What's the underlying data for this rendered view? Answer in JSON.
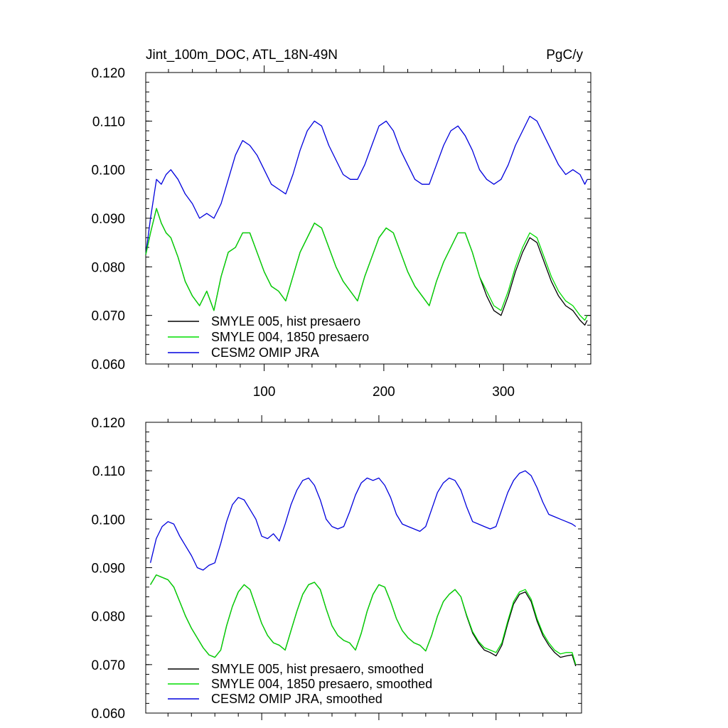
{
  "header": {
    "title": "Jint_100m_DOC, ATL_18N-49N",
    "units": "PgC/y"
  },
  "chart_data": [
    {
      "type": "line",
      "title": "Jint_100m_DOC, ATL_18N-49N",
      "units": "PgC/y",
      "xlim": [
        1,
        373
      ],
      "ylim": [
        0.06,
        0.12
      ],
      "x_ticks": [
        100,
        200,
        300
      ],
      "x_tick_labels": [
        "100",
        "200",
        "300"
      ],
      "y_ticks": [
        0.06,
        0.07,
        0.08,
        0.09,
        0.1,
        0.11,
        0.12
      ],
      "y_tick_labels": [
        "0.060",
        "0.070",
        "0.080",
        "0.090",
        "0.100",
        "0.110",
        "0.120"
      ],
      "legend_position": "bottom-left",
      "grid": false,
      "series": [
        {
          "name": "SMYLE 005, hist presaero",
          "color": "#000000",
          "x": [
            1,
            5,
            10,
            14,
            18,
            22,
            28,
            34,
            40,
            46,
            52,
            58,
            64,
            70,
            76,
            82,
            88,
            94,
            100,
            106,
            112,
            118,
            124,
            130,
            136,
            142,
            148,
            154,
            160,
            166,
            172,
            178,
            184,
            190,
            196,
            202,
            208,
            214,
            220,
            226,
            232,
            238,
            244,
            250,
            256,
            262,
            268,
            274,
            280,
            286,
            292,
            298,
            304,
            310,
            316,
            322,
            328,
            334,
            340,
            346,
            352,
            358,
            364,
            368,
            370
          ],
          "y": [
            0.0825,
            0.087,
            0.092,
            0.089,
            0.087,
            0.086,
            0.082,
            0.077,
            0.074,
            0.072,
            0.075,
            0.071,
            0.078,
            0.083,
            0.084,
            0.087,
            0.087,
            0.083,
            0.079,
            0.076,
            0.075,
            0.073,
            0.078,
            0.083,
            0.086,
            0.089,
            0.088,
            0.084,
            0.08,
            0.077,
            0.075,
            0.073,
            0.078,
            0.082,
            0.086,
            0.088,
            0.087,
            0.083,
            0.079,
            0.076,
            0.074,
            0.072,
            0.077,
            0.081,
            0.084,
            0.087,
            0.087,
            0.083,
            0.078,
            0.074,
            0.071,
            0.07,
            0.074,
            0.079,
            0.083,
            0.086,
            0.085,
            0.081,
            0.077,
            0.074,
            0.072,
            0.071,
            0.069,
            0.068,
            0.069
          ]
        },
        {
          "name": "SMYLE 004, 1850 presaero",
          "color": "#00dd00",
          "x": [
            1,
            5,
            10,
            14,
            18,
            22,
            28,
            34,
            40,
            46,
            52,
            58,
            64,
            70,
            76,
            82,
            88,
            94,
            100,
            106,
            112,
            118,
            124,
            130,
            136,
            142,
            148,
            154,
            160,
            166,
            172,
            178,
            184,
            190,
            196,
            202,
            208,
            214,
            220,
            226,
            232,
            238,
            244,
            250,
            256,
            262,
            268,
            274,
            280,
            286,
            292,
            298,
            304,
            310,
            316,
            322,
            328,
            334,
            340,
            346,
            352,
            358,
            364,
            368,
            370
          ],
          "y": [
            0.0825,
            0.087,
            0.092,
            0.089,
            0.087,
            0.086,
            0.082,
            0.077,
            0.074,
            0.072,
            0.075,
            0.071,
            0.078,
            0.083,
            0.084,
            0.087,
            0.087,
            0.083,
            0.079,
            0.076,
            0.075,
            0.073,
            0.078,
            0.083,
            0.086,
            0.089,
            0.088,
            0.084,
            0.08,
            0.077,
            0.075,
            0.073,
            0.078,
            0.082,
            0.086,
            0.088,
            0.087,
            0.083,
            0.079,
            0.076,
            0.074,
            0.072,
            0.077,
            0.081,
            0.084,
            0.087,
            0.087,
            0.083,
            0.078,
            0.075,
            0.072,
            0.071,
            0.075,
            0.08,
            0.084,
            0.087,
            0.086,
            0.082,
            0.078,
            0.075,
            0.073,
            0.072,
            0.07,
            0.069,
            0.07
          ]
        },
        {
          "name": "CESM2 OMIP JRA",
          "color": "#0000dd",
          "x": [
            1,
            5,
            10,
            14,
            18,
            22,
            28,
            34,
            40,
            46,
            52,
            58,
            64,
            70,
            76,
            82,
            88,
            94,
            100,
            106,
            112,
            118,
            124,
            130,
            136,
            142,
            148,
            154,
            160,
            166,
            172,
            178,
            184,
            190,
            196,
            202,
            208,
            214,
            220,
            226,
            232,
            238,
            244,
            250,
            256,
            262,
            268,
            274,
            280,
            286,
            292,
            298,
            304,
            310,
            316,
            322,
            328,
            334,
            340,
            346,
            352,
            358,
            364,
            368,
            370
          ],
          "y": [
            0.0825,
            0.09,
            0.098,
            0.097,
            0.099,
            0.1,
            0.098,
            0.095,
            0.093,
            0.09,
            0.091,
            0.09,
            0.093,
            0.098,
            0.103,
            0.106,
            0.105,
            0.103,
            0.1,
            0.097,
            0.096,
            0.095,
            0.099,
            0.104,
            0.108,
            0.11,
            0.109,
            0.105,
            0.102,
            0.099,
            0.098,
            0.098,
            0.101,
            0.105,
            0.109,
            0.11,
            0.108,
            0.104,
            0.101,
            0.098,
            0.097,
            0.097,
            0.101,
            0.105,
            0.108,
            0.109,
            0.107,
            0.104,
            0.1,
            0.098,
            0.097,
            0.098,
            0.101,
            0.105,
            0.108,
            0.111,
            0.11,
            0.107,
            0.104,
            0.101,
            0.099,
            0.1,
            0.099,
            0.097,
            0.098
          ]
        }
      ]
    },
    {
      "type": "line",
      "xlim": [
        1,
        373
      ],
      "ylim": [
        0.06,
        0.12
      ],
      "x_ticks": [
        100,
        200,
        300
      ],
      "y_ticks": [
        0.06,
        0.07,
        0.08,
        0.09,
        0.1,
        0.11,
        0.12
      ],
      "y_tick_labels": [
        "0.060",
        "0.070",
        "0.080",
        "0.090",
        "0.100",
        "0.110",
        "0.120"
      ],
      "legend_position": "bottom-left",
      "grid": false,
      "series": [
        {
          "name": "SMYLE 005, hist presaero, smoothed",
          "color": "#000000",
          "x": [
            5,
            10,
            15,
            20,
            25,
            30,
            35,
            40,
            45,
            50,
            55,
            60,
            65,
            70,
            75,
            80,
            85,
            90,
            95,
            100,
            105,
            110,
            115,
            120,
            125,
            130,
            135,
            140,
            145,
            150,
            155,
            160,
            165,
            170,
            175,
            180,
            185,
            190,
            195,
            200,
            205,
            210,
            215,
            220,
            225,
            230,
            235,
            240,
            245,
            250,
            255,
            260,
            265,
            270,
            275,
            280,
            285,
            290,
            295,
            300,
            305,
            310,
            315,
            320,
            325,
            330,
            335,
            340,
            345,
            350,
            355,
            360,
            365,
            368
          ],
          "y": [
            0.0865,
            0.0885,
            0.088,
            0.0875,
            0.086,
            0.083,
            0.08,
            0.0775,
            0.0755,
            0.0735,
            0.072,
            0.0715,
            0.073,
            0.078,
            0.082,
            0.085,
            0.0865,
            0.0855,
            0.082,
            0.0785,
            0.076,
            0.0745,
            0.074,
            0.073,
            0.077,
            0.081,
            0.0845,
            0.0865,
            0.087,
            0.0855,
            0.0815,
            0.078,
            0.076,
            0.075,
            0.0745,
            0.073,
            0.0765,
            0.081,
            0.0845,
            0.0865,
            0.086,
            0.083,
            0.0795,
            0.077,
            0.0755,
            0.0745,
            0.074,
            0.0728,
            0.076,
            0.08,
            0.083,
            0.0845,
            0.0855,
            0.084,
            0.08,
            0.0765,
            0.0745,
            0.073,
            0.0725,
            0.0718,
            0.074,
            0.0785,
            0.0825,
            0.0845,
            0.085,
            0.083,
            0.079,
            0.076,
            0.074,
            0.0725,
            0.0715,
            0.0718,
            0.072,
            0.0697
          ]
        },
        {
          "name": "SMYLE 004, 1850 presaero, smoothed",
          "color": "#00dd00",
          "x": [
            5,
            10,
            15,
            20,
            25,
            30,
            35,
            40,
            45,
            50,
            55,
            60,
            65,
            70,
            75,
            80,
            85,
            90,
            95,
            100,
            105,
            110,
            115,
            120,
            125,
            130,
            135,
            140,
            145,
            150,
            155,
            160,
            165,
            170,
            175,
            180,
            185,
            190,
            195,
            200,
            205,
            210,
            215,
            220,
            225,
            230,
            235,
            240,
            245,
            250,
            255,
            260,
            265,
            270,
            275,
            280,
            285,
            290,
            295,
            300,
            305,
            310,
            315,
            320,
            325,
            330,
            335,
            340,
            345,
            350,
            355,
            360,
            365,
            368
          ],
          "y": [
            0.0865,
            0.0885,
            0.088,
            0.0875,
            0.086,
            0.083,
            0.08,
            0.0775,
            0.0755,
            0.0735,
            0.072,
            0.0715,
            0.073,
            0.078,
            0.082,
            0.085,
            0.0865,
            0.0855,
            0.082,
            0.0785,
            0.076,
            0.0745,
            0.074,
            0.073,
            0.077,
            0.081,
            0.0845,
            0.0865,
            0.087,
            0.0855,
            0.0815,
            0.078,
            0.076,
            0.075,
            0.0745,
            0.073,
            0.0765,
            0.081,
            0.0845,
            0.0865,
            0.086,
            0.083,
            0.0795,
            0.077,
            0.0755,
            0.0745,
            0.074,
            0.0728,
            0.076,
            0.08,
            0.083,
            0.0845,
            0.0855,
            0.084,
            0.0802,
            0.0768,
            0.0748,
            0.0735,
            0.073,
            0.0725,
            0.0745,
            0.079,
            0.083,
            0.085,
            0.0855,
            0.0835,
            0.0795,
            0.0765,
            0.0745,
            0.073,
            0.0722,
            0.0725,
            0.0725,
            0.07
          ]
        },
        {
          "name": "CESM2 OMIP JRA, smoothed",
          "color": "#0000dd",
          "x": [
            5,
            10,
            15,
            20,
            25,
            30,
            35,
            40,
            45,
            50,
            55,
            60,
            65,
            70,
            75,
            80,
            85,
            90,
            95,
            100,
            105,
            110,
            115,
            120,
            125,
            130,
            135,
            140,
            145,
            150,
            155,
            160,
            165,
            170,
            175,
            180,
            185,
            190,
            195,
            200,
            205,
            210,
            215,
            220,
            225,
            230,
            235,
            240,
            245,
            250,
            255,
            260,
            265,
            270,
            275,
            280,
            285,
            290,
            295,
            300,
            305,
            310,
            315,
            320,
            325,
            330,
            335,
            340,
            345,
            350,
            355,
            360,
            365,
            368
          ],
          "y": [
            0.091,
            0.096,
            0.0985,
            0.0995,
            0.099,
            0.0965,
            0.0945,
            0.0925,
            0.09,
            0.0895,
            0.0905,
            0.091,
            0.095,
            0.0995,
            0.103,
            0.1045,
            0.104,
            0.102,
            0.1,
            0.0965,
            0.096,
            0.097,
            0.0955,
            0.099,
            0.103,
            0.106,
            0.108,
            0.1085,
            0.107,
            0.104,
            0.1,
            0.0985,
            0.098,
            0.0985,
            0.1015,
            0.105,
            0.1075,
            0.1085,
            0.108,
            0.1085,
            0.107,
            0.1045,
            0.101,
            0.099,
            0.0985,
            0.098,
            0.0975,
            0.0985,
            0.102,
            0.1055,
            0.1075,
            0.1085,
            0.108,
            0.106,
            0.1025,
            0.0995,
            0.099,
            0.0985,
            0.098,
            0.0985,
            0.102,
            0.1055,
            0.108,
            0.1095,
            0.11,
            0.109,
            0.1065,
            0.1035,
            0.101,
            0.1005,
            0.1,
            0.0995,
            0.099,
            0.0985
          ]
        }
      ]
    }
  ]
}
